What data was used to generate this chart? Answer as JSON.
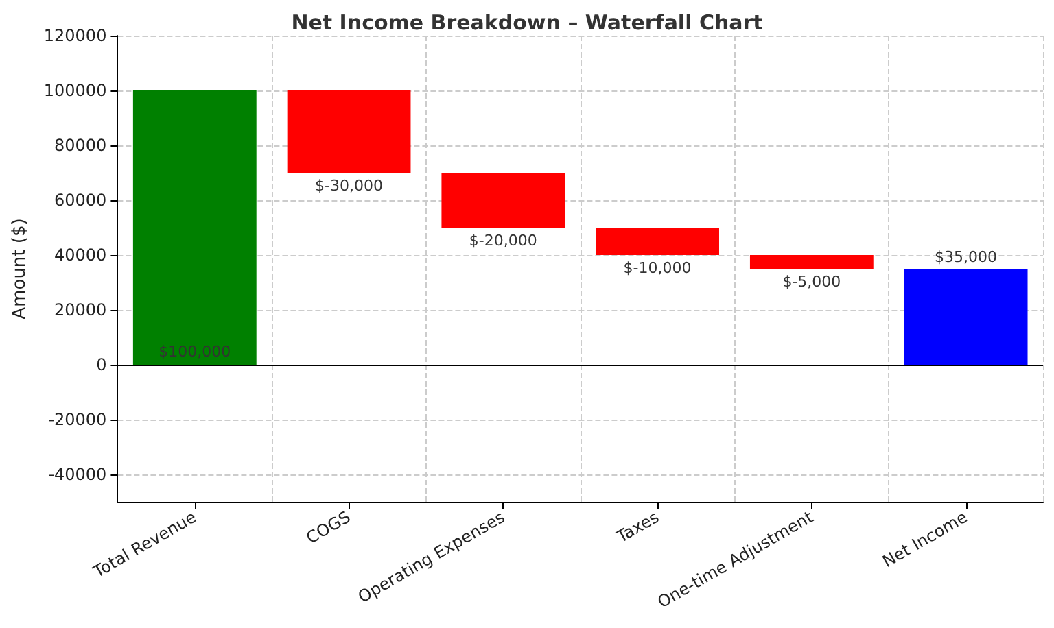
{
  "chart_data": {
    "type": "bar",
    "title": "Net Income Breakdown – Waterfall Chart",
    "ylabel": "Amount ($)",
    "categories": [
      "Total Revenue",
      "COGS",
      "Operating Expenses",
      "Taxes",
      "One-time Adjustment",
      "Net Income"
    ],
    "values": [
      100000,
      -30000,
      -20000,
      -10000,
      -5000,
      35000
    ],
    "base": [
      0,
      100000,
      70000,
      50000,
      40000,
      0
    ],
    "colors": [
      "#008000",
      "#ff0000",
      "#ff0000",
      "#ff0000",
      "#ff0000",
      "#0000ff"
    ],
    "value_labels": [
      "$100,000",
      "$-30,000",
      "$-20,000",
      "$-10,000",
      "$-5,000",
      "$35,000"
    ],
    "ylim": [
      -50000,
      120000
    ],
    "yticks": [
      -40000,
      -20000,
      0,
      20000,
      40000,
      60000,
      80000,
      100000,
      120000
    ],
    "ref_lines": [
      {
        "axis": "y",
        "value": 0,
        "color": "#000000"
      }
    ],
    "grid": true
  }
}
